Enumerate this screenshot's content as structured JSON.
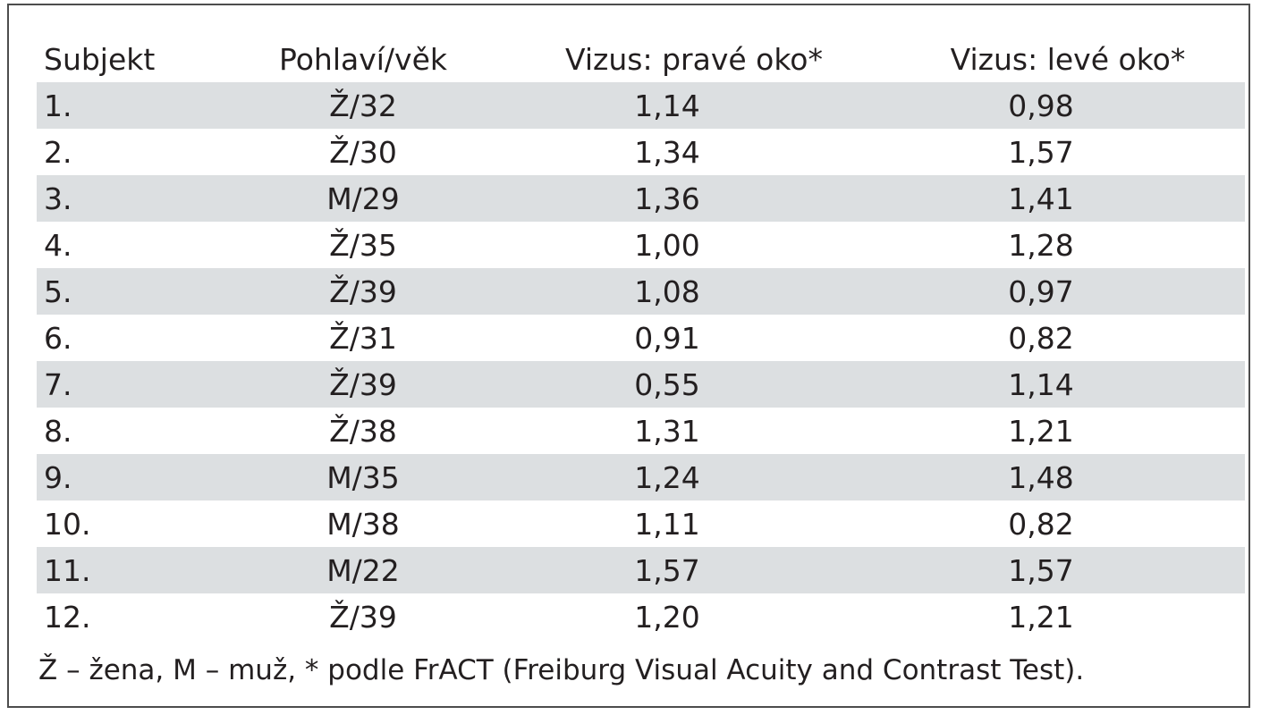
{
  "table": {
    "headers": [
      "Subjekt",
      "Pohlaví/věk",
      "Vizus: pravé oko*",
      "Vizus: levé oko*"
    ],
    "rows": [
      [
        "1.",
        "Ž/32",
        "1,14",
        "0,98"
      ],
      [
        "2.",
        "Ž/30",
        "1,34",
        "1,57"
      ],
      [
        "3.",
        "M/29",
        "1,36",
        "1,41"
      ],
      [
        "4.",
        "Ž/35",
        "1,00",
        "1,28"
      ],
      [
        "5.",
        "Ž/39",
        "1,08",
        "0,97"
      ],
      [
        "6.",
        "Ž/31",
        "0,91",
        "0,82"
      ],
      [
        "7.",
        "Ž/39",
        "0,55",
        "1,14"
      ],
      [
        "8.",
        "Ž/38",
        "1,31",
        "1,21"
      ],
      [
        "9.",
        "M/35",
        "1,24",
        "1,48"
      ],
      [
        "10.",
        "M/38",
        "1,11",
        "0,82"
      ],
      [
        "11.",
        "M/22",
        "1,57",
        "1,57"
      ],
      [
        "12.",
        "Ž/39",
        "1,20",
        "1,21"
      ]
    ]
  },
  "footnote": "Ž – žena, M – muž, * podle FrACT (Freiburg Visual Acuity and Contrast Test).",
  "colors": {
    "shaded_row": "#dcdfe1",
    "border": "#4d4d4d",
    "text": "#231f20"
  }
}
